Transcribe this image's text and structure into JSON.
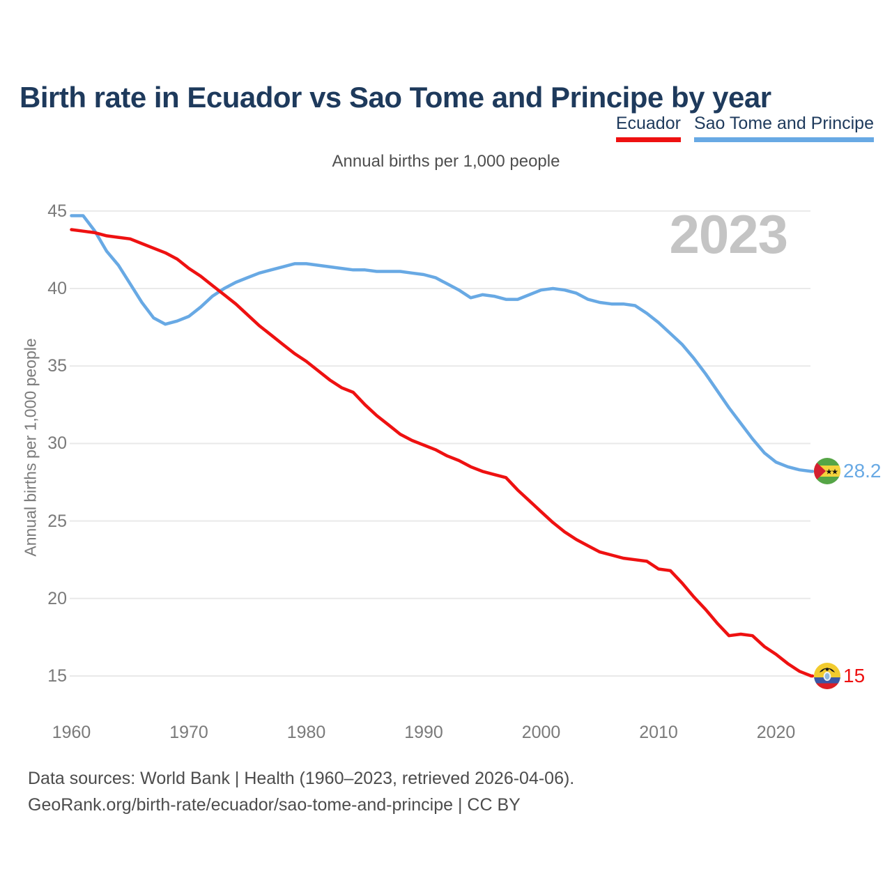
{
  "page": {
    "title": "Birth rate in Ecuador vs Sao Tome and Principe by year",
    "subtitle": "Annual births per 1,000 people",
    "watermark": "2023",
    "y_axis_title": "Annual births per 1,000 people",
    "footer_line1": "Data sources: World Bank | Health (1960–2023, retrieved 2026-04-06).",
    "footer_line2": "GeoRank.org/birth-rate/ecuador/sao-tome-and-principe | CC BY"
  },
  "legend": [
    {
      "label": "Ecuador",
      "color": "#ee1111"
    },
    {
      "label": "Sao Tome and Principe",
      "color": "#68a9e4"
    }
  ],
  "colors": {
    "title_navy": "#1e3a5c",
    "ecuador_red": "#ee1111",
    "sao_tome_blue": "#68a9e4",
    "gridline": "#e9e9e9",
    "tick_text": "#7a7a7a",
    "muted_text": "#4c4c4c",
    "watermark_gray": "#c4c4c4"
  },
  "flags": [
    {
      "name": "ecuador-flag",
      "description": "Ecuador flag roundel: yellow, blue, red bands with condor crest"
    },
    {
      "name": "sao-tome-flag",
      "description": "Sao Tome and Principe flag roundel: green with yellow band, two black stars, red hoist triangle"
    }
  ],
  "chart_data": {
    "type": "line",
    "title": "Annual births per 1,000 people",
    "xlabel": "",
    "ylabel": "Annual births per 1,000 people",
    "xlim": [
      1960,
      2023
    ],
    "ylim": [
      15,
      45
    ],
    "grid": "horizontal",
    "legend_position": "top-right",
    "watermark": "2023",
    "x_ticks": [
      "1960",
      "1970",
      "1980",
      "1990",
      "2000",
      "2010",
      "2020"
    ],
    "y_ticks": [
      45,
      40,
      35,
      30,
      25,
      20,
      15
    ],
    "x": [
      1960,
      1961,
      1962,
      1963,
      1964,
      1965,
      1966,
      1967,
      1968,
      1969,
      1970,
      1971,
      1972,
      1973,
      1974,
      1975,
      1976,
      1977,
      1978,
      1979,
      1980,
      1981,
      1982,
      1983,
      1984,
      1985,
      1986,
      1987,
      1988,
      1989,
      1990,
      1991,
      1992,
      1993,
      1994,
      1995,
      1996,
      1997,
      1998,
      1999,
      2000,
      2001,
      2002,
      2003,
      2004,
      2005,
      2006,
      2007,
      2008,
      2009,
      2010,
      2011,
      2012,
      2013,
      2014,
      2015,
      2016,
      2017,
      2018,
      2019,
      2020,
      2021,
      2022,
      2023
    ],
    "series": [
      {
        "name": "Ecuador",
        "color": "#ee1111",
        "end_label": "15",
        "end_value": 15,
        "values": [
          43.8,
          43.7,
          43.6,
          43.4,
          43.3,
          43.2,
          42.9,
          42.6,
          42.3,
          41.9,
          41.3,
          40.8,
          40.2,
          39.6,
          39.0,
          38.3,
          37.6,
          37.0,
          36.4,
          35.8,
          35.3,
          34.7,
          34.1,
          33.6,
          33.3,
          32.5,
          31.8,
          31.2,
          30.6,
          30.2,
          29.9,
          29.6,
          29.2,
          28.9,
          28.5,
          28.2,
          28.0,
          27.8,
          27.0,
          26.3,
          25.6,
          24.9,
          24.3,
          23.8,
          23.4,
          23.0,
          22.8,
          22.6,
          22.5,
          22.4,
          21.9,
          21.8,
          21.0,
          20.1,
          19.3,
          18.4,
          17.6,
          17.7,
          17.6,
          16.9,
          16.4,
          15.8,
          15.3,
          15.0
        ]
      },
      {
        "name": "Sao Tome and Principe",
        "color": "#68a9e4",
        "end_label": "28.2",
        "end_value": 28.2,
        "values": [
          44.7,
          44.7,
          43.7,
          42.4,
          41.5,
          40.3,
          39.1,
          38.1,
          37.7,
          37.9,
          38.2,
          38.8,
          39.5,
          40.0,
          40.4,
          40.7,
          41.0,
          41.2,
          41.4,
          41.6,
          41.6,
          41.5,
          41.4,
          41.3,
          41.2,
          41.2,
          41.1,
          41.1,
          41.1,
          41.0,
          40.9,
          40.7,
          40.3,
          39.9,
          39.4,
          39.6,
          39.5,
          39.3,
          39.3,
          39.6,
          39.9,
          40.0,
          39.9,
          39.7,
          39.3,
          39.1,
          39.0,
          39.0,
          38.9,
          38.4,
          37.8,
          37.1,
          36.4,
          35.5,
          34.5,
          33.4,
          32.3,
          31.3,
          30.3,
          29.4,
          28.8,
          28.5,
          28.3,
          28.2
        ]
      }
    ]
  }
}
